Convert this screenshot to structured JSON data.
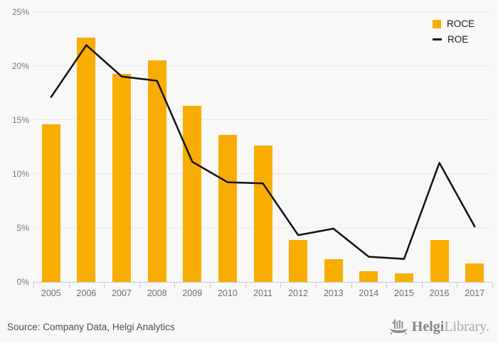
{
  "chart_data": {
    "type": "bar",
    "categories": [
      "2005",
      "2006",
      "2007",
      "2008",
      "2009",
      "2010",
      "2011",
      "2012",
      "2013",
      "2014",
      "2015",
      "2016",
      "2017"
    ],
    "series": [
      {
        "name": "ROCE",
        "render": "bar",
        "color": "#F9AD00",
        "values": [
          14.6,
          22.6,
          19.3,
          20.5,
          16.3,
          13.6,
          12.6,
          3.9,
          2.1,
          1.0,
          0.8,
          3.9,
          1.7
        ]
      },
      {
        "name": "ROE",
        "render": "line",
        "color": "#111111",
        "values": [
          17.2,
          22.0,
          19.1,
          18.7,
          11.2,
          9.3,
          9.2,
          4.4,
          5.0,
          2.4,
          2.2,
          11.1,
          5.2
        ]
      }
    ],
    "title": "",
    "xlabel": "",
    "ylabel": "",
    "ylim": [
      0,
      25
    ],
    "yticks": [
      0,
      5,
      10,
      15,
      20,
      25
    ],
    "ytick_labels": [
      "0%",
      "5%",
      "10%",
      "15%",
      "20%",
      "25%"
    ],
    "grid": true,
    "legend_position": "top-right"
  },
  "legend": {
    "items": [
      {
        "label": "ROCE",
        "swatch": "square",
        "color": "#F9AD00"
      },
      {
        "label": "ROE",
        "swatch": "line",
        "color": "#111111"
      }
    ]
  },
  "footer": {
    "source": "Source: Company Data, Helgi Analytics",
    "logo": {
      "brand_bold": "Helgi",
      "brand_light": "Library."
    }
  },
  "colors": {
    "background": "#f8f8f7",
    "bar": "#F9AD00",
    "line": "#111111",
    "gridline": "#e9e9e7",
    "axis": "#c3ccdf",
    "tick_label": "#777777",
    "source_text": "#4f4f4f",
    "logo_dark": "#848484",
    "logo_light": "#a8a8a8"
  }
}
